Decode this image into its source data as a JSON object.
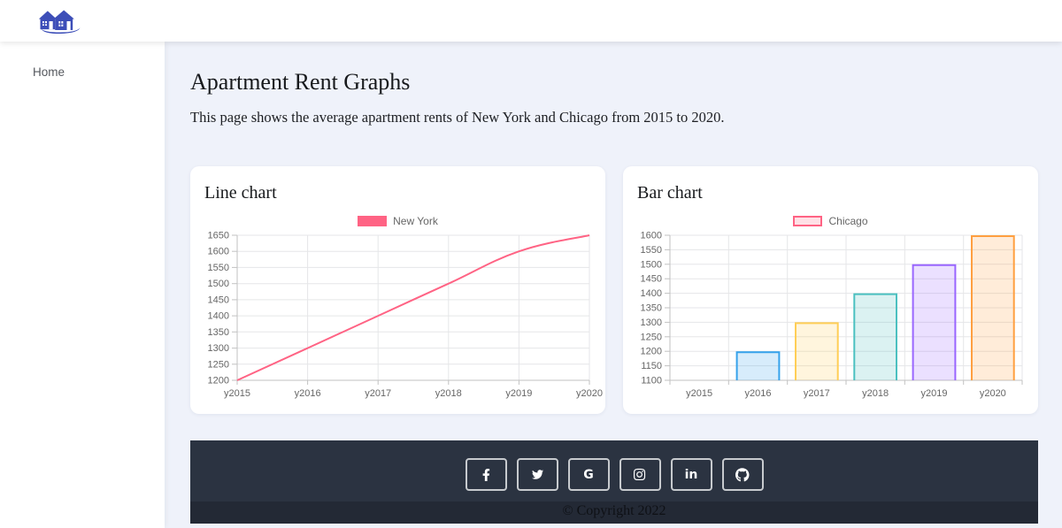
{
  "navbar": {
    "logo": "houses-logo"
  },
  "sidebar": {
    "items": [
      {
        "label": "Home"
      }
    ]
  },
  "page": {
    "title": "Apartment Rent Graphs",
    "description": "This page shows the average apartment rents of New York and Chicago from 2015 to 2020."
  },
  "chart_data": [
    {
      "type": "line",
      "title": "Line chart",
      "categories": [
        "y2015",
        "y2016",
        "y2017",
        "y2018",
        "y2019",
        "y2020"
      ],
      "series": [
        {
          "name": "New York",
          "values": [
            1200,
            1300,
            1400,
            1500,
            1600,
            1650
          ]
        }
      ],
      "ylim": [
        1200,
        1650
      ],
      "ytick_step": 50,
      "line_color": "#ff6384",
      "legend_style": "solid",
      "legend_position": "top",
      "grid": true
    },
    {
      "type": "bar",
      "title": "Bar chart",
      "categories": [
        "y2015",
        "y2016",
        "y2017",
        "y2018",
        "y2019",
        "y2020"
      ],
      "series": [
        {
          "name": "Chicago",
          "values": [
            1100,
            1200,
            1300,
            1400,
            1500,
            1600
          ]
        }
      ],
      "ylim": [
        1100,
        1600
      ],
      "ytick_step": 50,
      "bar_colors": [
        "#ff6384",
        "#36a2eb",
        "#ffce56",
        "#4bc0c0",
        "#9966ff",
        "#ff9f40"
      ],
      "legend_color": "#ff6384",
      "legend_style": "outline",
      "legend_position": "top",
      "grid": true
    }
  ],
  "footer": {
    "social_buttons": [
      {
        "name": "facebook"
      },
      {
        "name": "twitter"
      },
      {
        "name": "google",
        "glyph": "G"
      },
      {
        "name": "instagram"
      },
      {
        "name": "linkedin",
        "glyph": "in"
      },
      {
        "name": "github"
      }
    ],
    "copyright": "© Copyright 2022"
  },
  "colors": {
    "page_bg": "#eff2fa",
    "footer_bg": "#2b3341",
    "accent_pink": "#ff6384",
    "grid_line": "#e5e6e8",
    "axis_line": "#c2c2c2",
    "tick_text": "#666666",
    "logo_blue": "#3d4eb8"
  }
}
